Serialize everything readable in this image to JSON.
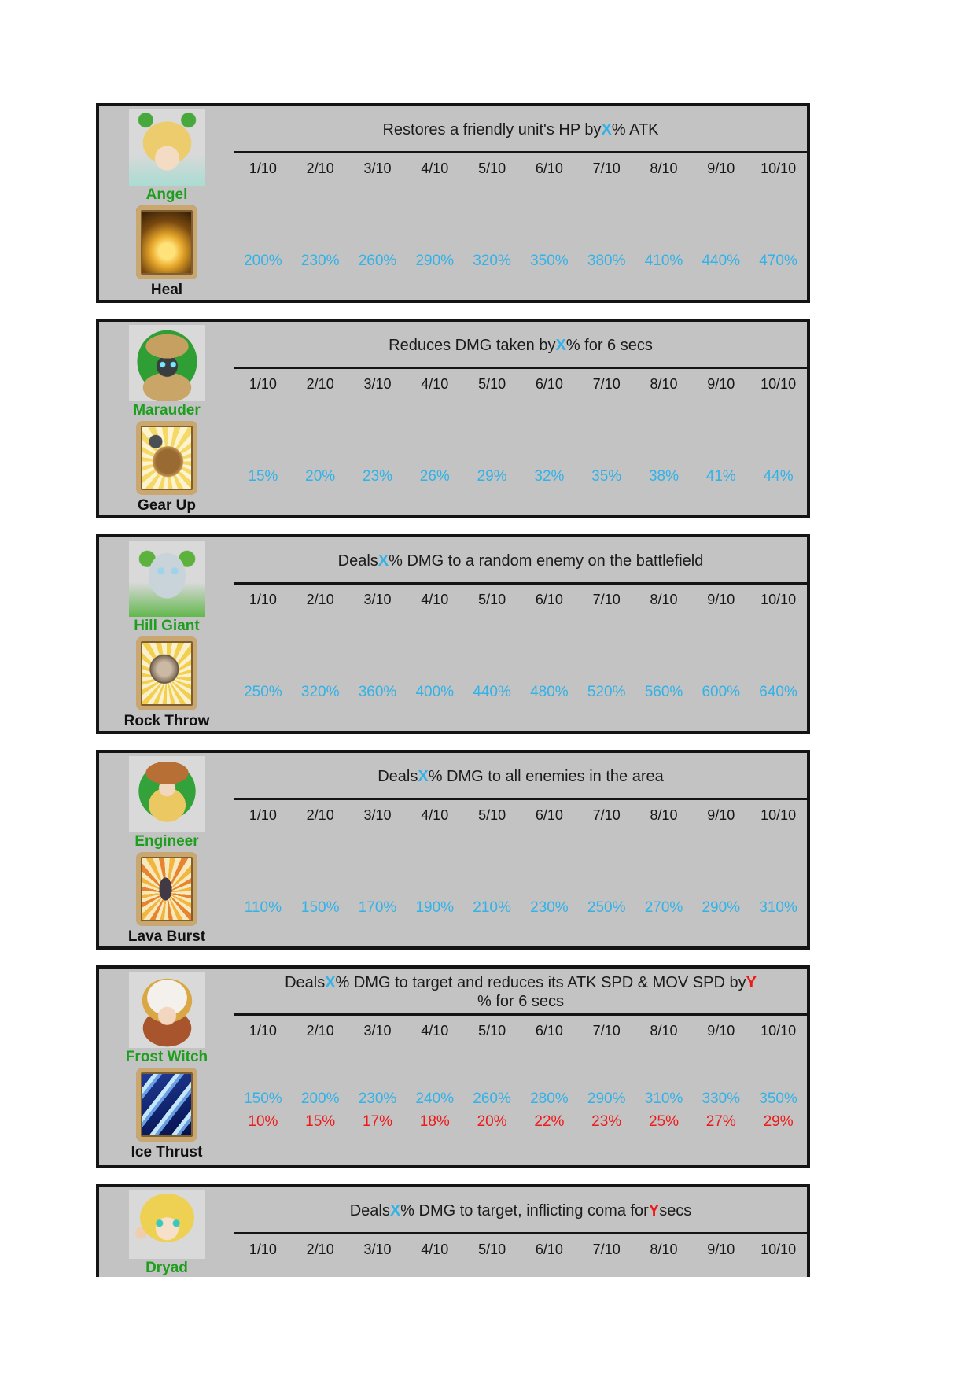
{
  "colors": {
    "panel_background": "#c3c3c3",
    "portrait_background": "#d9d9d9",
    "panel_border": "#141414",
    "value_blue": "#31b2e8",
    "value_red": "#ee1a1a",
    "hero_name_green": "#1d9e1d",
    "text": "#1b1b1b"
  },
  "levels": [
    "1/10",
    "2/10",
    "3/10",
    "4/10",
    "5/10",
    "6/10",
    "7/10",
    "8/10",
    "9/10",
    "10/10"
  ],
  "panels": [
    {
      "hero": "Angel",
      "skill": "Heal",
      "art": "angel",
      "skill_art": "heal",
      "portrait_icon": "angel-portrait-icon",
      "skill_icon": "heal-skill-icon",
      "truncated": false,
      "description": [
        {
          "text": "Restores a friendly unit's HP by ",
          "highlight": null
        },
        {
          "text": "X",
          "highlight": "blue"
        },
        {
          "text": "% ATK",
          "highlight": null
        }
      ],
      "rows": [
        {
          "color": "blue",
          "values": [
            "200%",
            "230%",
            "260%",
            "290%",
            "320%",
            "350%",
            "380%",
            "410%",
            "440%",
            "470%"
          ]
        }
      ]
    },
    {
      "hero": "Marauder",
      "skill": "Gear Up",
      "art": "marauder",
      "skill_art": "gear-up",
      "portrait_icon": "marauder-portrait-icon",
      "skill_icon": "gear-up-skill-icon",
      "truncated": false,
      "description": [
        {
          "text": "Reduces DMG taken by ",
          "highlight": null
        },
        {
          "text": "X",
          "highlight": "blue"
        },
        {
          "text": "% for 6 secs",
          "highlight": null
        }
      ],
      "rows": [
        {
          "color": "blue",
          "values": [
            "15%",
            "20%",
            "23%",
            "26%",
            "29%",
            "32%",
            "35%",
            "38%",
            "41%",
            "44%"
          ]
        }
      ]
    },
    {
      "hero": "Hill Giant",
      "skill": "Rock Throw",
      "art": "hill-giant",
      "skill_art": "rock-throw",
      "portrait_icon": "hill-giant-portrait-icon",
      "skill_icon": "rock-throw-skill-icon",
      "truncated": false,
      "description": [
        {
          "text": "Deals ",
          "highlight": null
        },
        {
          "text": "X",
          "highlight": "blue"
        },
        {
          "text": "% DMG to a random enemy on the battlefield",
          "highlight": null
        }
      ],
      "rows": [
        {
          "color": "blue",
          "values": [
            "250%",
            "320%",
            "360%",
            "400%",
            "440%",
            "480%",
            "520%",
            "560%",
            "600%",
            "640%"
          ]
        }
      ]
    },
    {
      "hero": "Engineer",
      "skill": "Lava Burst",
      "art": "engineer",
      "skill_art": "lava-burst",
      "portrait_icon": "engineer-portrait-icon",
      "skill_icon": "lava-burst-skill-icon",
      "truncated": false,
      "description": [
        {
          "text": "Deals ",
          "highlight": null
        },
        {
          "text": "X",
          "highlight": "blue"
        },
        {
          "text": "% DMG to all enemies in the area",
          "highlight": null
        }
      ],
      "rows": [
        {
          "color": "blue",
          "values": [
            "110%",
            "150%",
            "170%",
            "190%",
            "210%",
            "230%",
            "250%",
            "270%",
            "290%",
            "310%"
          ]
        }
      ]
    },
    {
      "hero": "Frost Witch",
      "skill": "Ice Thrust",
      "art": "frost-witch",
      "skill_art": "ice-thrust",
      "portrait_icon": "frost-witch-portrait-icon",
      "skill_icon": "ice-thrust-skill-icon",
      "truncated": false,
      "description": [
        {
          "text": "Deals ",
          "highlight": null
        },
        {
          "text": "X",
          "highlight": "blue"
        },
        {
          "text": "% DMG to target and reduces its ATK SPD & MOV SPD by ",
          "highlight": null
        },
        {
          "text": "Y",
          "highlight": "red"
        },
        {
          "text": "% for 6 secs",
          "highlight": null
        }
      ],
      "rows": [
        {
          "color": "blue",
          "values": [
            "150%",
            "200%",
            "230%",
            "240%",
            "260%",
            "280%",
            "290%",
            "310%",
            "330%",
            "350%"
          ]
        },
        {
          "color": "red",
          "values": [
            "10%",
            "15%",
            "17%",
            "18%",
            "20%",
            "22%",
            "23%",
            "25%",
            "27%",
            "29%"
          ]
        }
      ]
    },
    {
      "hero": "Dryad",
      "skill": "",
      "art": "dryad",
      "skill_art": "",
      "portrait_icon": "dryad-portrait-icon",
      "skill_icon": "",
      "truncated": true,
      "description": [
        {
          "text": "Deals ",
          "highlight": null
        },
        {
          "text": "X",
          "highlight": "blue"
        },
        {
          "text": "% DMG to target, inflicting coma for ",
          "highlight": null
        },
        {
          "text": "Y",
          "highlight": "red"
        },
        {
          "text": " secs",
          "highlight": null
        }
      ],
      "rows": []
    }
  ]
}
